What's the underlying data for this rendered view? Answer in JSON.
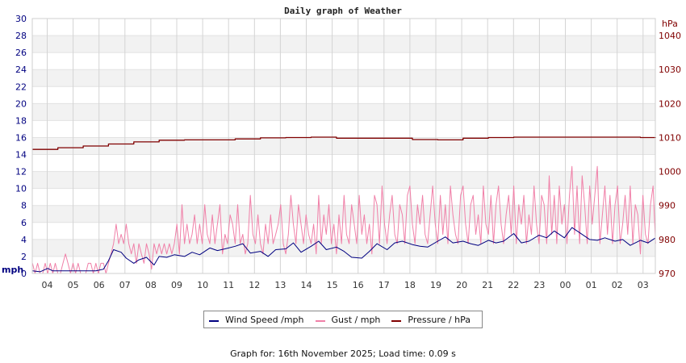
{
  "chart_data": {
    "type": "line",
    "title": "Daily graph of Weather",
    "xlabel": "",
    "ylabel_left": "mph",
    "ylabel_right": "hPa",
    "ylim_left": [
      0,
      30
    ],
    "ylim_right": [
      970,
      1045
    ],
    "yticks_left": [
      0,
      2,
      4,
      6,
      8,
      10,
      12,
      14,
      16,
      18,
      20,
      22,
      24,
      26,
      28,
      30
    ],
    "yticks_right": [
      970,
      980,
      990,
      1000,
      1010,
      1020,
      1030,
      1040
    ],
    "xticks": [
      "04",
      "05",
      "06",
      "07",
      "08",
      "09",
      "10",
      "11",
      "12",
      "13",
      "14",
      "15",
      "16",
      "17",
      "18",
      "19",
      "20",
      "21",
      "22",
      "23",
      "00",
      "01",
      "02",
      "03"
    ],
    "grid": true,
    "legend_position": "bottom",
    "hours_span": 24.6,
    "series": [
      {
        "name": "Wind Speed /mph",
        "color": "#000080",
        "axis": "left",
        "x_hours": [
          0,
          0.3,
          0.6,
          0.8,
          1.0,
          1.5,
          2.0,
          2.5,
          2.8,
          3.0,
          3.2,
          3.5,
          3.7,
          4.0,
          4.2,
          4.5,
          4.8,
          5.0,
          5.3,
          5.6,
          6.0,
          6.3,
          6.6,
          7.0,
          7.3,
          7.6,
          8.0,
          8.3,
          8.6,
          9.0,
          9.3,
          9.6,
          10.0,
          10.3,
          10.6,
          11.0,
          11.3,
          11.6,
          12.0,
          12.3,
          12.6,
          13.0,
          13.3,
          13.6,
          14.0,
          14.3,
          14.6,
          15.0,
          15.3,
          15.6,
          16.0,
          16.3,
          16.6,
          17.0,
          17.3,
          17.6,
          18.0,
          18.3,
          18.6,
          19.0,
          19.3,
          19.6,
          20.0,
          20.3,
          20.6,
          21.0,
          21.3,
          21.6,
          22.0,
          22.3,
          22.6,
          23.0,
          23.3,
          23.6,
          24.0,
          24.3,
          24.6
        ],
        "values": [
          0.3,
          0.2,
          0.6,
          0.3,
          0.3,
          0.3,
          0.3,
          0.3,
          0.5,
          1.5,
          2.8,
          2.5,
          1.8,
          1.2,
          1.6,
          1.9,
          1.0,
          2.0,
          1.9,
          2.2,
          2.0,
          2.5,
          2.2,
          3.0,
          2.7,
          2.9,
          3.2,
          3.5,
          2.4,
          2.6,
          2.0,
          2.8,
          2.9,
          3.6,
          2.5,
          3.2,
          3.8,
          2.8,
          3.1,
          2.6,
          1.9,
          1.8,
          2.6,
          3.5,
          2.8,
          3.6,
          3.8,
          3.4,
          3.2,
          3.1,
          3.8,
          4.3,
          3.6,
          3.8,
          3.5,
          3.3,
          3.9,
          3.6,
          3.8,
          4.7,
          3.6,
          3.8,
          4.5,
          4.2,
          5.0,
          4.2,
          5.4,
          4.8,
          4.0,
          3.9,
          4.2,
          3.8,
          4.0,
          3.3,
          3.9,
          3.6,
          4.2
        ]
      },
      {
        "name": "Gust / mph",
        "color": "#f080a8",
        "axis": "left",
        "x_hours": [
          0,
          0.1,
          0.2,
          0.3,
          0.4,
          0.5,
          0.6,
          0.7,
          0.8,
          0.9,
          1.0,
          1.1,
          1.2,
          1.3,
          1.4,
          1.5,
          1.6,
          1.7,
          1.8,
          1.9,
          2.0,
          2.1,
          2.2,
          2.3,
          2.4,
          2.5,
          2.6,
          2.7,
          2.8,
          2.9,
          3.0,
          3.1,
          3.2,
          3.3,
          3.4,
          3.5,
          3.6,
          3.7,
          3.8,
          3.9,
          4.0,
          4.1,
          4.2,
          4.3,
          4.4,
          4.5,
          4.6,
          4.7,
          4.8,
          4.9,
          5.0,
          5.1,
          5.2,
          5.3,
          5.4,
          5.5,
          5.6,
          5.7,
          5.8,
          5.9,
          6.0,
          6.1,
          6.2,
          6.3,
          6.4,
          6.5,
          6.6,
          6.7,
          6.8,
          6.9,
          7.0,
          7.1,
          7.2,
          7.3,
          7.4,
          7.5,
          7.6,
          7.7,
          7.8,
          7.9,
          8.0,
          8.1,
          8.2,
          8.3,
          8.4,
          8.5,
          8.6,
          8.7,
          8.8,
          8.9,
          9.0,
          9.1,
          9.2,
          9.3,
          9.4,
          9.5,
          9.6,
          9.7,
          9.8,
          9.9,
          10.0,
          10.1,
          10.2,
          10.3,
          10.4,
          10.5,
          10.6,
          10.7,
          10.8,
          10.9,
          11.0,
          11.1,
          11.2,
          11.3,
          11.4,
          11.5,
          11.6,
          11.7,
          11.8,
          11.9,
          12.0,
          12.1,
          12.2,
          12.3,
          12.4,
          12.5,
          12.6,
          12.7,
          12.8,
          12.9,
          13.0,
          13.1,
          13.2,
          13.3,
          13.4,
          13.5,
          13.6,
          13.7,
          13.8,
          13.9,
          14.0,
          14.1,
          14.2,
          14.3,
          14.4,
          14.5,
          14.6,
          14.7,
          14.8,
          14.9,
          15.0,
          15.1,
          15.2,
          15.3,
          15.4,
          15.5,
          15.6,
          15.7,
          15.8,
          15.9,
          16.0,
          16.1,
          16.2,
          16.3,
          16.4,
          16.5,
          16.6,
          16.7,
          16.8,
          16.9,
          17.0,
          17.1,
          17.2,
          17.3,
          17.4,
          17.5,
          17.6,
          17.7,
          17.8,
          17.9,
          18.0,
          18.1,
          18.2,
          18.3,
          18.4,
          18.5,
          18.6,
          18.7,
          18.8,
          18.9,
          19.0,
          19.1,
          19.2,
          19.3,
          19.4,
          19.5,
          19.6,
          19.7,
          19.8,
          19.9,
          20.0,
          20.1,
          20.2,
          20.3,
          20.4,
          20.5,
          20.6,
          20.7,
          20.8,
          20.9,
          21.0,
          21.1,
          21.2,
          21.3,
          21.4,
          21.5,
          21.6,
          21.7,
          21.8,
          21.9,
          22.0,
          22.1,
          22.2,
          22.3,
          22.4,
          22.5,
          22.6,
          22.7,
          22.8,
          22.9,
          23.0,
          23.1,
          23.2,
          23.3,
          23.4,
          23.5,
          23.6,
          23.7,
          23.8,
          23.9,
          24.0,
          24.1,
          24.2,
          24.3,
          24.4,
          24.5,
          24.6
        ],
        "values": [
          1.2,
          0,
          1.2,
          0,
          0,
          1.2,
          0,
          1.2,
          0,
          1.2,
          0,
          0,
          1.2,
          2.3,
          1.2,
          0,
          1.2,
          0,
          1.2,
          0,
          0,
          0,
          1.2,
          1.2,
          0,
          1.2,
          0,
          1.2,
          1.2,
          0,
          1.2,
          2.3,
          3.5,
          5.8,
          3.5,
          4.6,
          3.5,
          5.8,
          3.5,
          2.3,
          3.5,
          1.2,
          3.5,
          2.3,
          1.2,
          3.5,
          2.3,
          0.5,
          3.5,
          2.3,
          3.5,
          2.3,
          3.5,
          2.3,
          3.5,
          2.3,
          3.5,
          5.8,
          2.3,
          8.1,
          3.5,
          5.8,
          3.5,
          4.6,
          6.9,
          3.5,
          5.8,
          3.5,
          8.1,
          4.6,
          3.5,
          6.9,
          3.5,
          5.8,
          8.1,
          2.3,
          4.6,
          3.5,
          6.9,
          5.8,
          3.5,
          8.1,
          3.5,
          4.6,
          2.3,
          3.5,
          9.2,
          4.6,
          3.5,
          6.9,
          3.5,
          2.3,
          5.8,
          3.5,
          6.9,
          3.5,
          4.6,
          5.8,
          8.1,
          3.5,
          2.3,
          4.6,
          9.2,
          5.8,
          3.5,
          8.1,
          5.8,
          3.5,
          6.9,
          4.6,
          3.5,
          5.8,
          2.3,
          9.2,
          3.5,
          6.9,
          4.6,
          8.1,
          3.5,
          5.8,
          2.3,
          6.9,
          3.5,
          9.2,
          4.6,
          3.5,
          8.1,
          5.8,
          3.5,
          9.2,
          4.6,
          6.9,
          3.5,
          5.8,
          2.3,
          9.2,
          8.1,
          3.5,
          10.3,
          5.8,
          3.5,
          6.9,
          9.2,
          4.6,
          3.5,
          8.1,
          6.9,
          3.5,
          9.2,
          10.3,
          5.8,
          3.5,
          8.1,
          5.8,
          9.2,
          4.6,
          3.5,
          6.9,
          10.3,
          5.8,
          3.5,
          9.2,
          4.6,
          8.1,
          3.5,
          10.3,
          6.9,
          4.6,
          3.5,
          9.2,
          10.3,
          5.8,
          3.5,
          8.1,
          9.2,
          4.6,
          6.9,
          3.5,
          10.3,
          5.8,
          4.6,
          9.2,
          3.5,
          8.1,
          10.3,
          5.8,
          3.5,
          6.9,
          9.2,
          4.6,
          10.3,
          3.5,
          8.1,
          5.8,
          9.2,
          3.5,
          6.9,
          4.6,
          10.3,
          5.8,
          3.5,
          9.2,
          8.1,
          3.5,
          11.5,
          4.6,
          9.2,
          3.5,
          10.3,
          5.8,
          8.1,
          3.5,
          9.2,
          12.6,
          4.6,
          10.3,
          3.5,
          11.5,
          8.1,
          3.5,
          10.3,
          5.8,
          9.2,
          12.6,
          3.5,
          6.9,
          10.3,
          4.6,
          9.2,
          3.5,
          8.1,
          10.3,
          3.5,
          5.8,
          9.2,
          4.6,
          10.3,
          3.5,
          8.1,
          6.9,
          2.3,
          9.2,
          4.6,
          3.5,
          8.1,
          10.3,
          3.5,
          5.8,
          9.2,
          2.3,
          8.1,
          11.5,
          3.5
        ]
      },
      {
        "name": "Pressure / hPa",
        "color": "#800000",
        "axis": "right",
        "x_hours": [
          0,
          1,
          2,
          3,
          4,
          5,
          6,
          7,
          8,
          9,
          10,
          11,
          12,
          13,
          14,
          15,
          16,
          17,
          18,
          19,
          20,
          21,
          22,
          23,
          24,
          24.6
        ],
        "values": [
          1006.5,
          1007.0,
          1007.5,
          1008.1,
          1008.7,
          1009.2,
          1009.3,
          1009.3,
          1009.6,
          1009.9,
          1010.0,
          1010.1,
          1009.8,
          1009.8,
          1009.8,
          1009.4,
          1009.3,
          1009.8,
          1010.0,
          1010.1,
          1010.1,
          1010.1,
          1010.1,
          1010.1,
          1010.0,
          1010.1
        ]
      }
    ]
  },
  "legend": {
    "items": [
      {
        "label": "Wind Speed /mph",
        "color": "#000080"
      },
      {
        "label": "Gust / mph",
        "color": "#f080a8"
      },
      {
        "label": "Pressure / hPa",
        "color": "#800000"
      }
    ]
  },
  "footer": {
    "text": "Graph for: 16th November 2025; Load time: 0.09 s"
  }
}
